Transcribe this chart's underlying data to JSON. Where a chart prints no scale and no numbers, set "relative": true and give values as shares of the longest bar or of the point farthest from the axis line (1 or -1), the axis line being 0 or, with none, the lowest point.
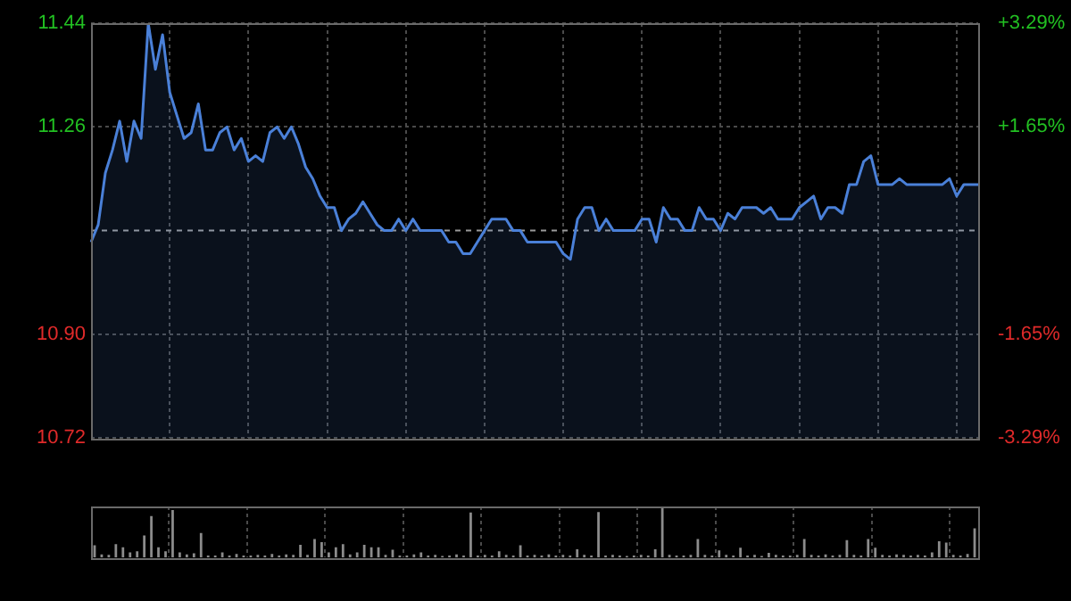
{
  "chart_data": [
    {
      "type": "area",
      "categories": [
        null,
        null,
        null,
        null,
        null,
        null,
        null,
        null,
        null,
        null,
        null,
        null,
        null,
        null,
        null,
        null,
        null,
        null,
        null,
        null,
        null,
        null,
        null,
        null,
        null,
        null,
        null,
        null,
        null,
        null,
        null,
        null,
        null,
        null,
        null,
        null,
        null,
        null,
        null,
        null,
        null,
        null,
        null,
        null,
        null,
        null,
        null,
        null,
        null,
        null,
        null,
        null,
        null,
        null,
        null,
        null,
        null,
        null,
        null,
        null,
        null,
        null,
        null,
        null,
        null,
        null,
        null,
        null,
        null,
        null,
        null,
        null,
        null,
        null,
        null,
        null,
        null,
        null,
        null,
        null,
        null,
        null,
        null,
        null,
        null,
        null,
        null,
        null,
        null,
        null,
        null,
        null,
        null,
        null,
        null,
        null,
        null,
        null,
        null,
        null,
        null,
        null,
        null,
        null,
        null,
        null,
        null,
        null,
        null,
        null,
        null,
        null,
        null,
        null,
        null,
        null,
        null,
        null,
        null,
        null,
        null,
        null,
        null,
        null,
        null
      ],
      "series": [
        {
          "color": "#4a80d8",
          "values": [
            11.06,
            11.09,
            11.18,
            11.22,
            11.27,
            11.2,
            11.27,
            11.24,
            11.44,
            11.36,
            11.42,
            11.32,
            11.28,
            11.24,
            11.25,
            11.3,
            11.22,
            11.22,
            11.25,
            11.26,
            11.22,
            11.24,
            11.2,
            11.21,
            11.2,
            11.25,
            11.26,
            11.24,
            11.26,
            11.23,
            11.19,
            11.17,
            11.14,
            11.12,
            11.12,
            11.08,
            11.1,
            11.11,
            11.13,
            11.11,
            11.09,
            11.08,
            11.08,
            11.1,
            11.08,
            11.1,
            11.08,
            11.08,
            11.08,
            11.08,
            11.06,
            11.06,
            11.04,
            11.04,
            11.06,
            11.08,
            11.1,
            11.1,
            11.1,
            11.08,
            11.08,
            11.06,
            11.06,
            11.06,
            11.06,
            11.06,
            11.04,
            11.03,
            11.1,
            11.12,
            11.12,
            11.08,
            11.1,
            11.08,
            11.08,
            11.08,
            11.08,
            11.1,
            11.1,
            11.06,
            11.12,
            11.1,
            11.1,
            11.08,
            11.08,
            11.12,
            11.1,
            11.1,
            11.08,
            11.11,
            11.1,
            11.12,
            11.12,
            11.12,
            11.11,
            11.12,
            11.1,
            11.1,
            11.1,
            11.12,
            11.13,
            11.14,
            11.1,
            11.12,
            11.12,
            11.11,
            11.16,
            11.16,
            11.2,
            11.21,
            11.16,
            11.16,
            11.16,
            11.17,
            11.16,
            11.16,
            11.16,
            11.16,
            11.16,
            11.16,
            11.17,
            11.14,
            11.16,
            11.16,
            11.16
          ]
        }
      ],
      "ylim": [
        10.72,
        11.44
      ],
      "yticks": [
        10.72,
        {
          "value": 10.9,
          "label": "10.90"
        },
        11.26,
        11.44
      ],
      "y2lim": [
        -3.29,
        3.29
      ],
      "y2ticks": [
        {
          "value": -3.29,
          "label": "-3.29%"
        },
        {
          "value": -1.65,
          "label": "-1.65%"
        },
        {
          "value": 1.65,
          "label": "+1.65%"
        },
        {
          "value": 3.29,
          "label": "+3.29%"
        }
      ],
      "ref_lines": [
        {
          "axis": "y",
          "value": 11.08,
          "color": "#9a9a9a",
          "line_style": "dashed"
        }
      ],
      "grid": true,
      "legend": false
    },
    {
      "type": "bar",
      "relative": true,
      "color": "#8c8c8c",
      "categories": [
        null,
        null,
        null,
        null,
        null,
        null,
        null,
        null,
        null,
        null,
        null,
        null,
        null,
        null,
        null,
        null,
        null,
        null,
        null,
        null,
        null,
        null,
        null,
        null,
        null,
        null,
        null,
        null,
        null,
        null,
        null,
        null,
        null,
        null,
        null,
        null,
        null,
        null,
        null,
        null,
        null,
        null,
        null,
        null,
        null,
        null,
        null,
        null,
        null,
        null,
        null,
        null,
        null,
        null,
        null,
        null,
        null,
        null,
        null,
        null,
        null,
        null,
        null,
        null,
        null,
        null,
        null,
        null,
        null,
        null,
        null,
        null,
        null,
        null,
        null,
        null,
        null,
        null,
        null,
        null,
        null,
        null,
        null,
        null,
        null,
        null,
        null,
        null,
        null,
        null,
        null,
        null,
        null,
        null,
        null,
        null,
        null,
        null,
        null,
        null,
        null,
        null,
        null,
        null,
        null,
        null,
        null,
        null,
        null,
        null,
        null,
        null,
        null,
        null,
        null,
        null,
        null,
        null,
        null,
        null,
        null,
        null,
        null,
        null,
        null
      ],
      "values": [
        0.24,
        0.06,
        0.05,
        0.26,
        0.2,
        0.1,
        0.12,
        0.43,
        0.81,
        0.2,
        0.12,
        0.93,
        0.1,
        0.06,
        0.08,
        0.48,
        0.04,
        0.04,
        0.1,
        0.04,
        0.07,
        0.04,
        0.04,
        0.05,
        0.04,
        0.07,
        0.04,
        0.06,
        0.05,
        0.25,
        0.05,
        0.36,
        0.3,
        0.1,
        0.2,
        0.26,
        0.06,
        0.1,
        0.25,
        0.2,
        0.2,
        0.05,
        0.15,
        0.04,
        0.04,
        0.06,
        0.1,
        0.04,
        0.05,
        0.03,
        0.04,
        0.06,
        0.04,
        0.88,
        0.04,
        0.05,
        0.04,
        0.12,
        0.05,
        0.04,
        0.24,
        0.04,
        0.05,
        0.04,
        0.06,
        0.04,
        0.05,
        0.04,
        0.16,
        0.05,
        0.04,
        0.89,
        0.04,
        0.05,
        0.04,
        0.03,
        0.04,
        0.05,
        0.04,
        0.16,
        1.0,
        0.05,
        0.04,
        0.04,
        0.05,
        0.36,
        0.05,
        0.04,
        0.14,
        0.05,
        0.04,
        0.19,
        0.04,
        0.05,
        0.03,
        0.09,
        0.05,
        0.04,
        0.04,
        0.05,
        0.36,
        0.05,
        0.04,
        0.06,
        0.04,
        0.05,
        0.34,
        0.05,
        0.04,
        0.36,
        0.19,
        0.05,
        0.04,
        0.06,
        0.05,
        0.04,
        0.05,
        0.04,
        0.1,
        0.32,
        0.29,
        0.05,
        0.04,
        0.07,
        0.57
      ],
      "grid": "x",
      "legend": false
    }
  ]
}
